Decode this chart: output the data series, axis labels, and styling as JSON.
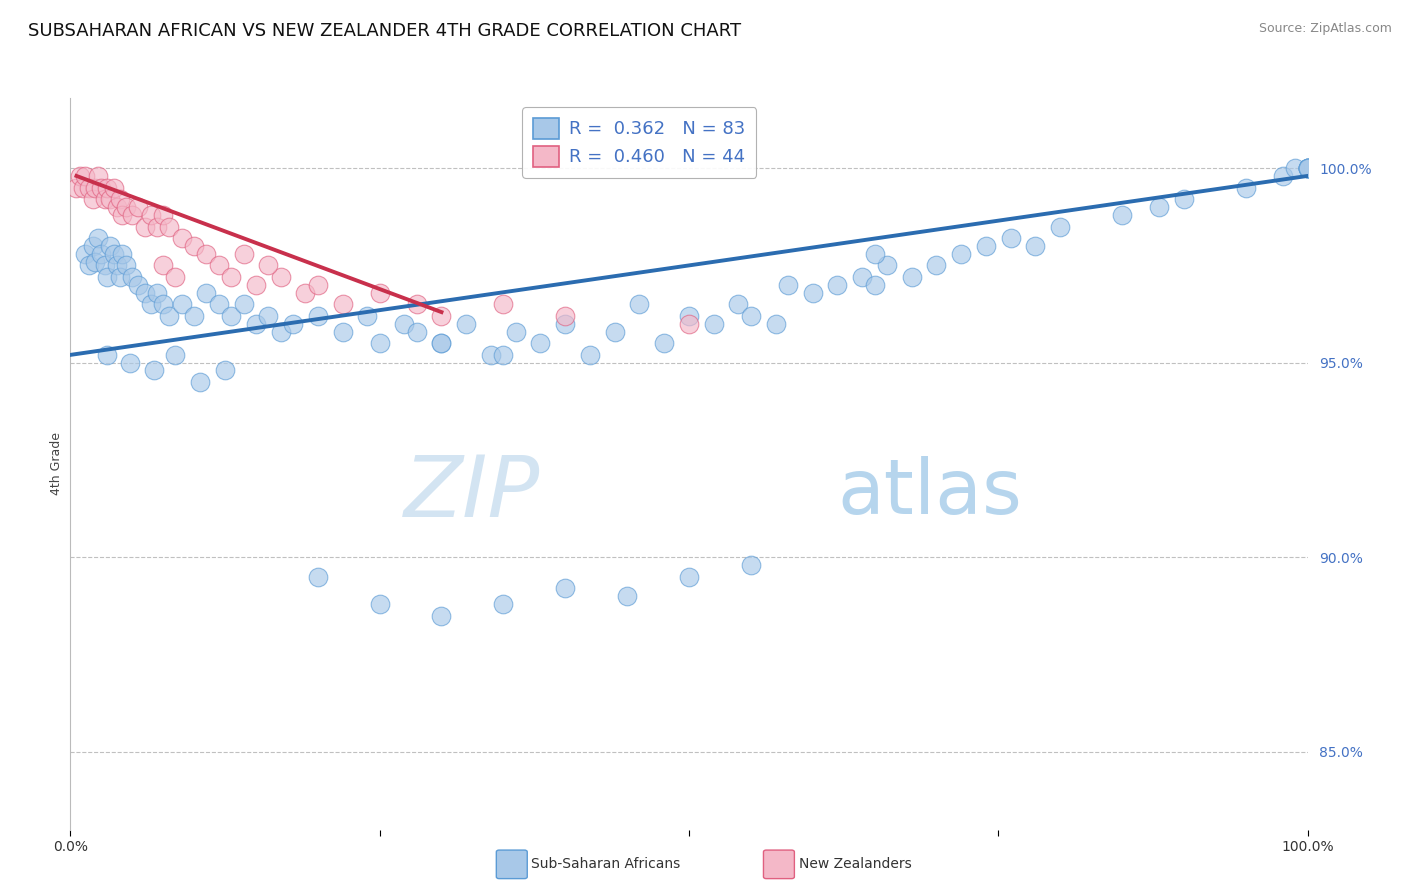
{
  "title": "SUBSAHARAN AFRICAN VS NEW ZEALANDER 4TH GRADE CORRELATION CHART",
  "source_text": "Source: ZipAtlas.com",
  "ylabel": "4th Grade",
  "watermark_zip": "ZIP",
  "watermark_atlas": "atlas",
  "xlim": [
    0.0,
    100.0
  ],
  "ylim": [
    83.0,
    101.8
  ],
  "yticks": [
    85.0,
    90.0,
    95.0,
    100.0
  ],
  "ytick_labels": [
    "85.0%",
    "90.0%",
    "95.0%",
    "100.0%"
  ],
  "legend_line1": "R =  0.362   N = 83",
  "legend_line2": "R =  0.460   N = 44",
  "legend_text_color": "#4472c4",
  "blue_color": "#a8c8e8",
  "blue_edge_color": "#5b9bd5",
  "pink_color": "#f4b8c8",
  "pink_edge_color": "#e06080",
  "blue_line_color": "#2b6cb0",
  "pink_line_color": "#c8304c",
  "background_color": "#ffffff",
  "grid_color": "#c0c0c0",
  "blue_scatter_x": [
    1.2,
    1.5,
    1.8,
    2.0,
    2.2,
    2.5,
    2.8,
    3.0,
    3.2,
    3.5,
    3.8,
    4.0,
    4.2,
    4.5,
    5.0,
    5.5,
    6.0,
    6.5,
    7.0,
    7.5,
    8.0,
    9.0,
    10.0,
    11.0,
    12.0,
    13.0,
    14.0,
    15.0,
    16.0,
    17.0,
    18.0,
    20.0,
    22.0,
    24.0,
    25.0,
    27.0,
    28.0,
    30.0,
    32.0,
    34.0,
    36.0,
    38.0,
    40.0,
    42.0,
    44.0,
    46.0,
    48.0,
    50.0,
    52.0,
    54.0,
    55.0,
    57.0,
    58.0,
    60.0,
    62.0,
    64.0,
    65.0,
    66.0,
    68.0,
    70.0,
    72.0,
    74.0,
    76.0,
    78.0,
    80.0,
    85.0,
    88.0,
    90.0,
    95.0,
    98.0,
    99.0,
    100.0,
    100.0,
    100.0,
    100.0,
    100.0,
    100.0,
    3.0,
    4.8,
    6.8,
    8.5,
    10.5,
    12.5
  ],
  "blue_scatter_y": [
    97.8,
    97.5,
    98.0,
    97.6,
    98.2,
    97.8,
    97.5,
    97.2,
    98.0,
    97.8,
    97.5,
    97.2,
    97.8,
    97.5,
    97.2,
    97.0,
    96.8,
    96.5,
    96.8,
    96.5,
    96.2,
    96.5,
    96.2,
    96.8,
    96.5,
    96.2,
    96.5,
    96.0,
    96.2,
    95.8,
    96.0,
    96.2,
    95.8,
    96.2,
    95.5,
    96.0,
    95.8,
    95.5,
    96.0,
    95.2,
    95.8,
    95.5,
    96.0,
    95.2,
    95.8,
    96.5,
    95.5,
    96.2,
    96.0,
    96.5,
    96.2,
    96.0,
    97.0,
    96.8,
    97.0,
    97.2,
    97.0,
    97.5,
    97.2,
    97.5,
    97.8,
    98.0,
    98.2,
    98.0,
    98.5,
    98.8,
    99.0,
    99.2,
    99.5,
    99.8,
    100.0,
    100.0,
    100.0,
    100.0,
    100.0,
    100.0,
    100.0,
    95.2,
    95.0,
    94.8,
    95.2,
    94.5,
    94.8
  ],
  "blue_scatter_x2": [
    20.0,
    25.0,
    30.0,
    35.0,
    40.0,
    45.0,
    50.0,
    55.0,
    30.0,
    35.0,
    65.0
  ],
  "blue_scatter_y2": [
    89.5,
    88.8,
    88.5,
    88.8,
    89.2,
    89.0,
    89.5,
    89.8,
    95.5,
    95.2,
    97.8
  ],
  "pink_scatter_x": [
    0.5,
    0.8,
    1.0,
    1.2,
    1.5,
    1.8,
    2.0,
    2.2,
    2.5,
    2.8,
    3.0,
    3.2,
    3.5,
    3.8,
    4.0,
    4.2,
    4.5,
    5.0,
    5.5,
    6.0,
    6.5,
    7.0,
    7.5,
    8.0,
    9.0,
    10.0,
    11.0,
    12.0,
    13.0,
    14.0,
    15.0,
    17.0,
    19.0,
    20.0,
    22.0,
    25.0,
    28.0,
    7.5,
    8.5,
    16.0,
    30.0,
    35.0,
    40.0,
    50.0
  ],
  "pink_scatter_y": [
    99.5,
    99.8,
    99.5,
    99.8,
    99.5,
    99.2,
    99.5,
    99.8,
    99.5,
    99.2,
    99.5,
    99.2,
    99.5,
    99.0,
    99.2,
    98.8,
    99.0,
    98.8,
    99.0,
    98.5,
    98.8,
    98.5,
    98.8,
    98.5,
    98.2,
    98.0,
    97.8,
    97.5,
    97.2,
    97.8,
    97.0,
    97.2,
    96.8,
    97.0,
    96.5,
    96.8,
    96.5,
    97.5,
    97.2,
    97.5,
    96.2,
    96.5,
    96.2,
    96.0
  ],
  "blue_trend_x": [
    0.0,
    100.0
  ],
  "blue_trend_y": [
    95.2,
    99.8
  ],
  "pink_trend_x": [
    0.5,
    30.0
  ],
  "pink_trend_y": [
    99.8,
    96.3
  ],
  "title_fontsize": 13,
  "axis_label_fontsize": 9,
  "tick_fontsize": 10,
  "source_fontsize": 9,
  "scatter_size": 180,
  "watermark_fontsize_zip": 62,
  "watermark_fontsize_atlas": 55
}
